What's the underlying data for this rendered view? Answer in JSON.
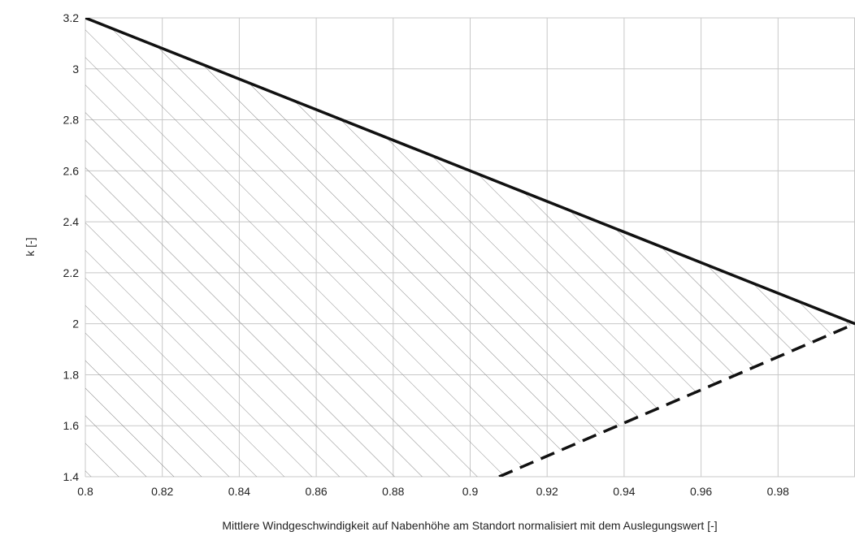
{
  "chart_data": {
    "type": "line",
    "title": "",
    "xlabel": "Mittlere Windgeschwindigkeit auf Nabenhöhe am Standort normalisiert mit dem Auslegungswert [-]",
    "ylabel": "k [-]",
    "xlim": [
      0.8,
      1.0
    ],
    "ylim": [
      1.4,
      3.2
    ],
    "x_ticks": [
      {
        "value": 0.8,
        "label": "0.8"
      },
      {
        "value": 0.82,
        "label": "0.82"
      },
      {
        "value": 0.84,
        "label": "0.84"
      },
      {
        "value": 0.86,
        "label": "0.86"
      },
      {
        "value": 0.88,
        "label": "0.88"
      },
      {
        "value": 0.9,
        "label": "0.9"
      },
      {
        "value": 0.92,
        "label": "0.92"
      },
      {
        "value": 0.94,
        "label": "0.94"
      },
      {
        "value": 0.96,
        "label": "0.96"
      },
      {
        "value": 0.98,
        "label": "0.98"
      }
    ],
    "x_grid": [
      0.8,
      0.82,
      0.84,
      0.86,
      0.88,
      0.9,
      0.92,
      0.94,
      0.96,
      0.98,
      1.0
    ],
    "y_ticks": [
      {
        "value": 1.4,
        "label": "1.4"
      },
      {
        "value": 1.6,
        "label": "1.6"
      },
      {
        "value": 1.8,
        "label": "1.8"
      },
      {
        "value": 2,
        "label": "2"
      },
      {
        "value": 2.2,
        "label": "2.2"
      },
      {
        "value": 2.4,
        "label": "2.4"
      },
      {
        "value": 2.6,
        "label": "2.6"
      },
      {
        "value": 2.8,
        "label": "2.8"
      },
      {
        "value": 3,
        "label": "3"
      },
      {
        "value": 3.2,
        "label": "3.2"
      }
    ],
    "grid": true,
    "legend": "none",
    "series": [
      {
        "style": "solid",
        "color": "#111111",
        "x": [
          0.8,
          1.0
        ],
        "y": [
          3.2,
          2.0
        ]
      },
      {
        "style": "dashed",
        "color": "#111111",
        "x": [
          0.9075,
          1.0
        ],
        "y": [
          1.4,
          2.0
        ]
      }
    ],
    "hatched_region": {
      "pattern": "diagonal-hatch",
      "color": "#8a8a8a",
      "polygon": [
        [
          0.8,
          1.4
        ],
        [
          0.8,
          3.2
        ],
        [
          1.0,
          2.0
        ],
        [
          0.9075,
          1.4
        ]
      ]
    }
  }
}
